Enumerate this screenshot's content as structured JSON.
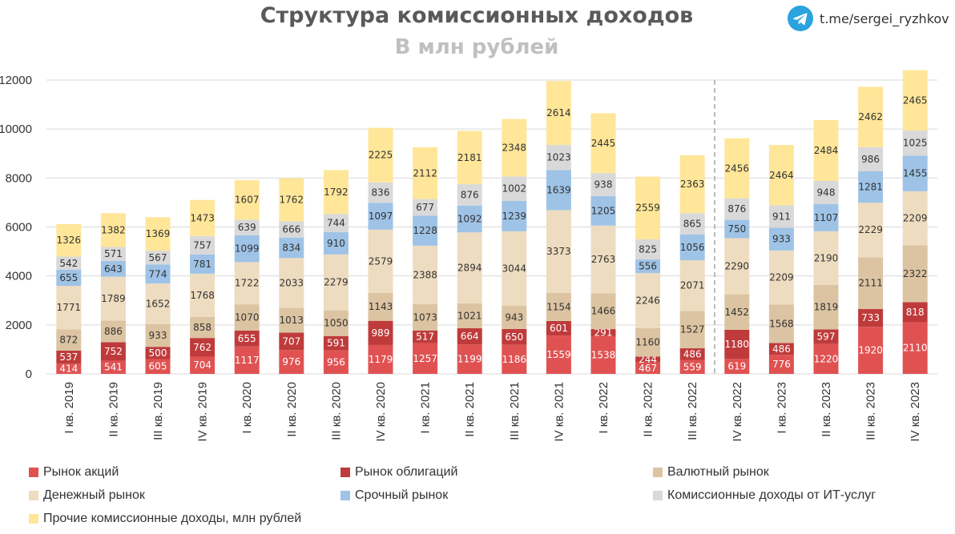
{
  "header": {
    "title": "Структура комиссионных доходов",
    "subtitle": "В млн рублей",
    "telegram_link": "t.me/sergei_ryzhkov",
    "telegram_icon": "telegram-icon"
  },
  "chart_data": {
    "type": "bar",
    "stacked": true,
    "title": "Структура комиссионных доходов",
    "subtitle": "В млн рублей",
    "xlabel": "",
    "ylabel": "",
    "ylim": [
      0,
      12000
    ],
    "yticks": [
      0,
      2000,
      4000,
      6000,
      8000,
      10000,
      12000
    ],
    "grid": true,
    "legend_position": "bottom",
    "categories": [
      "I кв. 2019",
      "II кв. 2019",
      "III кв. 2019",
      "IV кв. 2019",
      "I кв. 2020",
      "II кв. 2020",
      "III кв. 2020",
      "IV кв. 2020",
      "I кв. 2021",
      "II кв. 2021",
      "III кв. 2021",
      "IV кв. 2021",
      "I кв. 2022",
      "II кв. 2022",
      "III кв. 2022",
      "IV кв. 2022",
      "I кв. 2023",
      "II кв. 2023",
      "III кв. 2023",
      "IV кв. 2023"
    ],
    "series": [
      {
        "name": "Рынок акций",
        "color": "#e05252",
        "values": [
          414,
          541,
          605,
          704,
          1117,
          976,
          956,
          1179,
          1257,
          1199,
          1186,
          1559,
          1538,
          467,
          559,
          619,
          776,
          1220,
          1920,
          2110
        ]
      },
      {
        "name": "Рынок облигаций",
        "color": "#bf3b3b",
        "values": [
          537,
          752,
          500,
          762,
          655,
          707,
          591,
          989,
          517,
          664,
          650,
          601,
          291,
          244,
          486,
          1180,
          486,
          597,
          733,
          818
        ]
      },
      {
        "name": "Валютный рынок",
        "color": "#dcc4a2",
        "values": [
          872,
          886,
          933,
          858,
          1070,
          1013,
          1050,
          1143,
          1073,
          1021,
          943,
          1154,
          1466,
          1160,
          1527,
          1452,
          1568,
          1819,
          2111,
          2322
        ]
      },
      {
        "name": "Денежный рынок",
        "color": "#eedcc0",
        "values": [
          1771,
          1789,
          1652,
          1768,
          1722,
          2033,
          2279,
          2579,
          2388,
          2894,
          3044,
          3373,
          2763,
          2246,
          2071,
          2290,
          2209,
          2190,
          2229,
          2209
        ]
      },
      {
        "name": "Срочный рынок",
        "color": "#9ec3e6",
        "values": [
          655,
          643,
          774,
          781,
          1099,
          834,
          910,
          1097,
          1228,
          1092,
          1239,
          1639,
          1205,
          556,
          1056,
          750,
          933,
          1107,
          1281,
          1455
        ]
      },
      {
        "name": "Комиссионные доходы от ИТ-услуг",
        "color": "#d9d9d9",
        "values": [
          542,
          571,
          567,
          757,
          639,
          666,
          744,
          836,
          677,
          876,
          1002,
          1023,
          938,
          825,
          865,
          876,
          911,
          948,
          986,
          1025
        ]
      },
      {
        "name": "Прочие комиссионные доходы, млн рублей",
        "color": "#ffe699",
        "values": [
          1326,
          1382,
          1369,
          1473,
          1607,
          1762,
          1792,
          2225,
          2112,
          2181,
          2348,
          2614,
          2445,
          2559,
          2363,
          2456,
          2464,
          2484,
          2462,
          2465
        ]
      }
    ],
    "divider_after_category": "III кв. 2022"
  }
}
